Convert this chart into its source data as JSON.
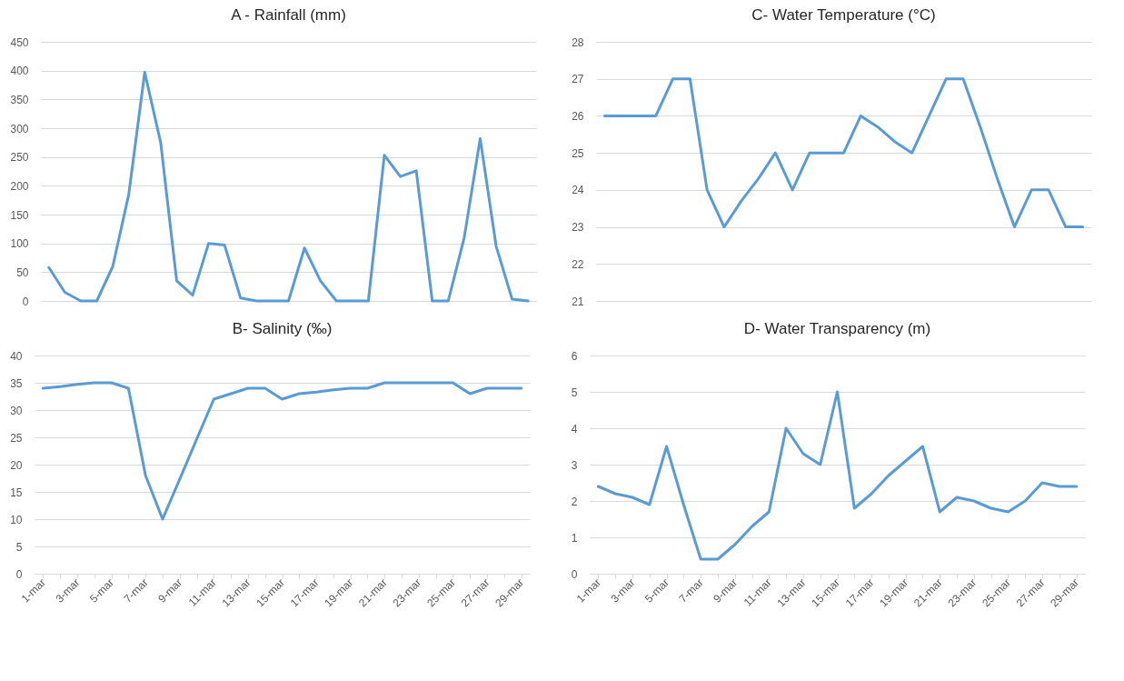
{
  "chart_data": [
    {
      "type": "line",
      "title": "A - Rainfall (mm)",
      "categories": [
        null,
        null,
        null,
        null,
        null,
        null,
        null,
        null,
        null,
        null,
        null,
        null,
        null,
        null,
        null,
        null,
        null,
        null,
        null,
        null,
        null,
        null,
        null,
        null,
        null,
        null,
        null,
        null,
        null,
        null,
        null
      ],
      "series": [
        {
          "color": "#5b9bd5",
          "values": [
            58,
            15,
            0,
            0,
            60,
            185,
            397,
            275,
            35,
            10,
            100,
            97,
            5,
            0,
            0,
            0,
            92,
            35,
            0,
            0,
            0,
            253,
            216,
            226,
            0,
            0,
            110,
            282,
            95,
            3,
            0
          ]
        }
      ],
      "ylim": [
        0,
        450
      ],
      "yticks": [
        0,
        50,
        100,
        150,
        200,
        250,
        300,
        350,
        400,
        450
      ],
      "grid": "y",
      "tick_labels": "y"
    },
    {
      "type": "line",
      "title": "C- Water Temperature (°C)",
      "categories": [
        null,
        null,
        null,
        null,
        null,
        null,
        null,
        null,
        null,
        null,
        null,
        null,
        null,
        null,
        null,
        null,
        null,
        null,
        null,
        null,
        null,
        null,
        null,
        null,
        null,
        null,
        null,
        null,
        null
      ],
      "series": [
        {
          "color": "#5b9bd5",
          "values": [
            26,
            26,
            26,
            26,
            27,
            27,
            24,
            23,
            23.7,
            24.3,
            25,
            24,
            25,
            25,
            25,
            26,
            25.7,
            25.3,
            25,
            26,
            27,
            27,
            25.7,
            24.3,
            23,
            24,
            24,
            23,
            23
          ]
        }
      ],
      "ylim": [
        21,
        28
      ],
      "yticks": [
        21,
        22,
        23,
        24,
        25,
        26,
        27,
        28
      ],
      "grid": "y",
      "tick_labels": "y"
    },
    {
      "type": "line",
      "title": "B- Salinity (‰)",
      "categories": [
        "1-mar",
        null,
        "3-mar",
        null,
        "5-mar",
        null,
        "7-mar",
        null,
        "9-mar",
        null,
        "11-mar",
        null,
        "13-mar",
        null,
        "15-mar",
        null,
        "17-mar",
        null,
        "19-mar",
        null,
        "21-mar",
        null,
        "23-mar",
        null,
        "25-mar",
        null,
        "27-mar",
        null,
        "29-mar"
      ],
      "series": [
        {
          "color": "#5b9bd5",
          "values": [
            34,
            34.3,
            34.7,
            35,
            35,
            34,
            18,
            10,
            17.3,
            24.7,
            32,
            33,
            34,
            34,
            32,
            33,
            33.3,
            33.7,
            34,
            34,
            35,
            35,
            35,
            35,
            35,
            33,
            34,
            34,
            34
          ]
        }
      ],
      "ylim": [
        0,
        40
      ],
      "yticks": [
        0,
        5,
        10,
        15,
        20,
        25,
        30,
        35,
        40
      ],
      "grid": "y"
    },
    {
      "type": "line",
      "title": "D- Water Transparency (m)",
      "categories": [
        "1-mar",
        null,
        "3-mar",
        null,
        "5-mar",
        null,
        "7-mar",
        null,
        "9-mar",
        null,
        "11-mar",
        null,
        "13-mar",
        null,
        "15-mar",
        null,
        "17-mar",
        null,
        "19-mar",
        null,
        "21-mar",
        null,
        "23-mar",
        null,
        "25-mar",
        null,
        "27-mar",
        null,
        "29-mar"
      ],
      "series": [
        {
          "color": "#5b9bd5",
          "values": [
            2.4,
            2.2,
            2.1,
            1.9,
            3.5,
            1.9,
            0.4,
            0.4,
            0.8,
            1.3,
            1.7,
            4.0,
            3.3,
            3.0,
            5.0,
            1.8,
            2.2,
            2.7,
            3.1,
            3.5,
            1.7,
            2.1,
            2.0,
            1.8,
            1.7,
            2.0,
            2.5,
            2.4,
            2.4
          ]
        }
      ],
      "ylim": [
        0,
        6
      ],
      "yticks": [
        0,
        1,
        2,
        3,
        4,
        5,
        6
      ],
      "grid": "y"
    }
  ]
}
